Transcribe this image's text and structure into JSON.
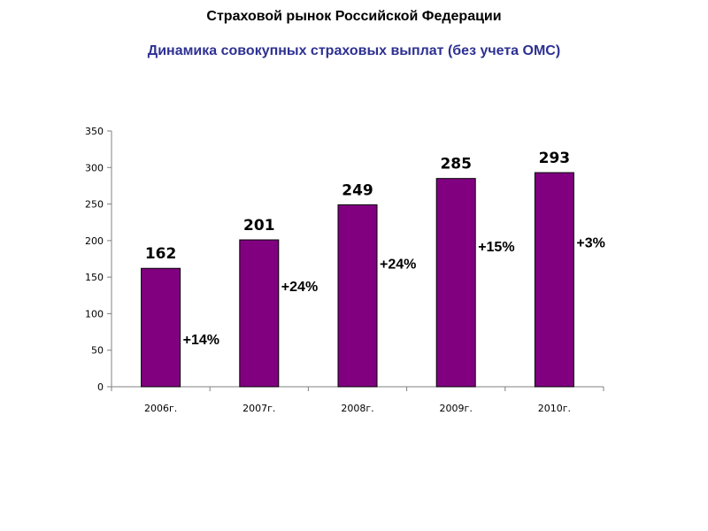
{
  "header": {
    "title": "Страховой рынок Российской Федерации",
    "subtitle": "Динамика совокупных страховых выплат (без учета ОМС)"
  },
  "colors": {
    "bar": "#800080",
    "bar_stroke": "#000000",
    "subtitle": "#2e3192"
  },
  "chart_data": {
    "type": "bar",
    "title": "Динамика совокупных страховых выплат (без учета ОМС)",
    "categories": [
      "2006г.",
      "2007г.",
      "2008г.",
      "2009г.",
      "2010г."
    ],
    "values": [
      162,
      201,
      249,
      285,
      293
    ],
    "value_labels": [
      "162",
      "201",
      "249",
      "285",
      "293"
    ],
    "growth_labels": [
      "+14%",
      "+24%",
      "+24%",
      "+15%",
      "+3%"
    ],
    "y_ticks": [
      "0",
      "50",
      "100",
      "150",
      "200",
      "250",
      "300",
      "350"
    ],
    "ylim": [
      0,
      350
    ],
    "xlabel": "",
    "ylabel": "",
    "grid": false,
    "legend": "none"
  }
}
